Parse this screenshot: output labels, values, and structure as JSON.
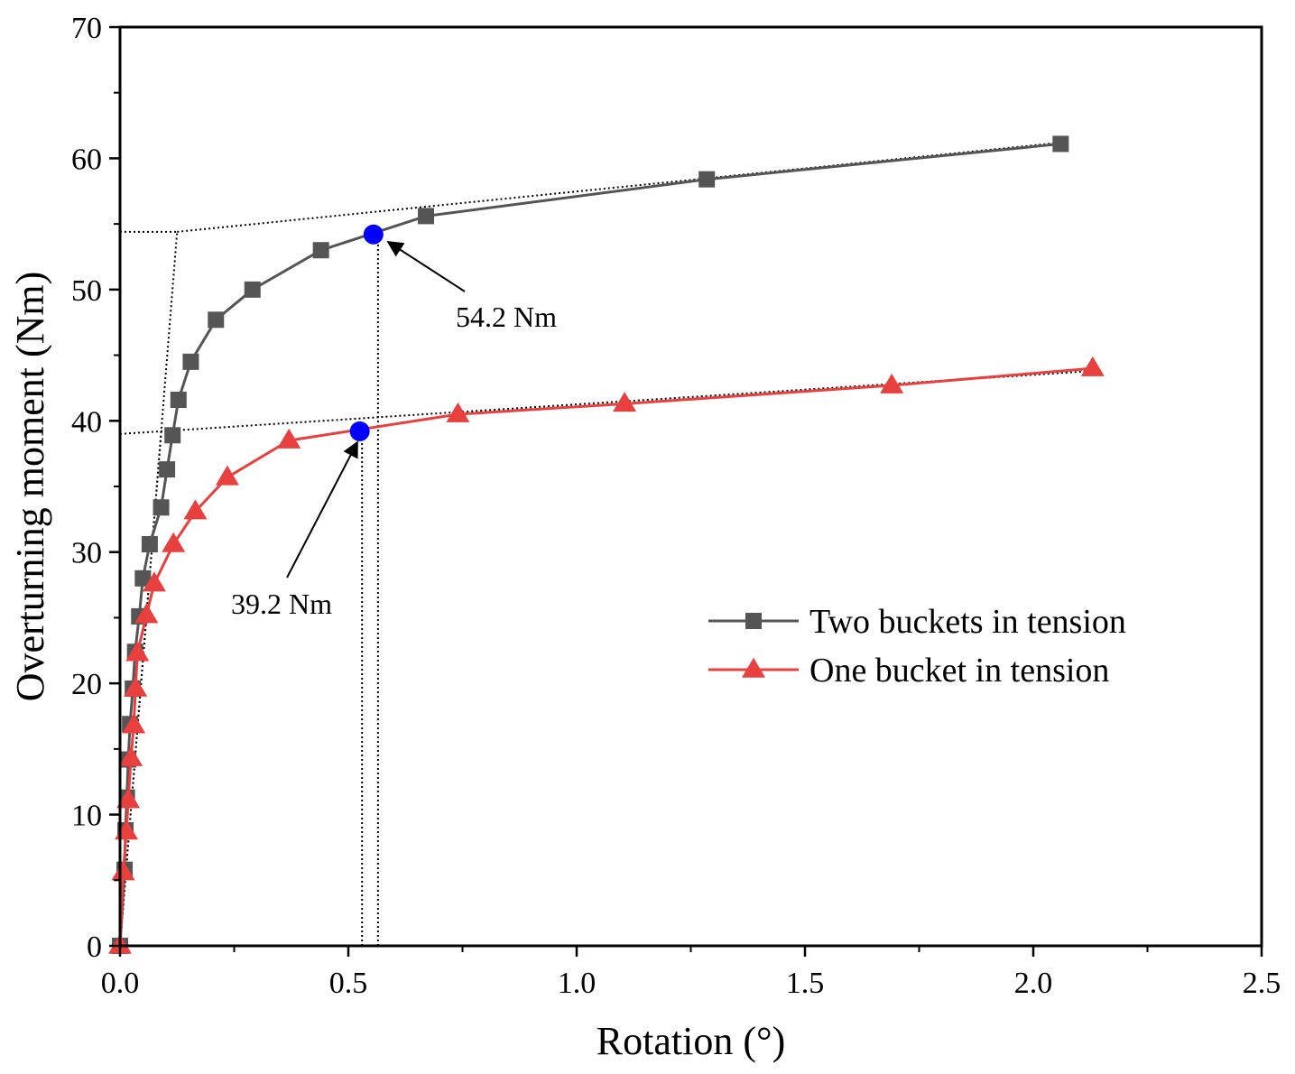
{
  "chart_data": {
    "type": "line",
    "xlabel": "Rotation (°)",
    "ylabel": "Overturning moment (Nm)",
    "xlim": [
      0,
      2.5
    ],
    "ylim": [
      0,
      70
    ],
    "x_ticks": [
      "0.0",
      "0.5",
      "1.0",
      "1.5",
      "2.0",
      "2.5"
    ],
    "y_ticks": [
      "0",
      "10",
      "20",
      "30",
      "40",
      "50",
      "60",
      "70"
    ],
    "grid": false,
    "legend_position": "right",
    "series": [
      {
        "name": "Two buckets in tension",
        "color": "#555555",
        "marker": "square",
        "points": [
          [
            0.0,
            0.0
          ],
          [
            0.01,
            5.8
          ],
          [
            0.012,
            8.8
          ],
          [
            0.015,
            11.3
          ],
          [
            0.018,
            14.2
          ],
          [
            0.022,
            16.9
          ],
          [
            0.028,
            19.6
          ],
          [
            0.033,
            22.4
          ],
          [
            0.042,
            25.1
          ],
          [
            0.05,
            28.0
          ],
          [
            0.065,
            30.6
          ],
          [
            0.09,
            33.4
          ],
          [
            0.103,
            36.3
          ],
          [
            0.115,
            38.9
          ],
          [
            0.128,
            41.6
          ],
          [
            0.155,
            44.5
          ],
          [
            0.21,
            47.7
          ],
          [
            0.29,
            50.0
          ],
          [
            0.44,
            53.0
          ],
          [
            0.67,
            55.6
          ],
          [
            1.285,
            58.4
          ],
          [
            2.06,
            61.1
          ]
        ]
      },
      {
        "name": "One bucket in tension",
        "color": "#e8403f",
        "marker": "triangle",
        "points": [
          [
            0.0,
            0.0
          ],
          [
            0.007,
            5.6
          ],
          [
            0.014,
            8.7
          ],
          [
            0.018,
            11.1
          ],
          [
            0.024,
            14.3
          ],
          [
            0.03,
            16.8
          ],
          [
            0.034,
            19.6
          ],
          [
            0.038,
            22.3
          ],
          [
            0.058,
            25.2
          ],
          [
            0.075,
            27.6
          ],
          [
            0.117,
            30.6
          ],
          [
            0.165,
            33.1
          ],
          [
            0.235,
            35.7
          ],
          [
            0.37,
            38.5
          ],
          [
            0.74,
            40.5
          ],
          [
            1.105,
            41.3
          ],
          [
            1.69,
            42.7
          ],
          [
            2.13,
            44.0
          ]
        ]
      }
    ],
    "yield_points": [
      {
        "x": 0.555,
        "y": 54.2,
        "label": "54.2 Nm",
        "color": "#0000ff"
      },
      {
        "x": 0.525,
        "y": 39.2,
        "label": "39.2 Nm",
        "color": "#0000ff"
      }
    ],
    "construction_lines": {
      "two_buckets": {
        "initial_tangent": [
          [
            0.0,
            0.0
          ],
          [
            0.125,
            54.4
          ]
        ],
        "final_tangent": [
          [
            0.125,
            54.4
          ],
          [
            2.06,
            61.2
          ]
        ],
        "horizontal": [
          [
            0.0,
            54.4
          ],
          [
            0.125,
            54.4
          ]
        ],
        "vertical_x": 0.565
      },
      "one_bucket": {
        "initial_tangent": [
          [
            0.0,
            0.0
          ],
          [
            0.09,
            39.0
          ]
        ],
        "final_tangent": [
          [
            0.0,
            39.0
          ],
          [
            2.13,
            43.8
          ]
        ],
        "vertical_x": 0.53
      }
    }
  }
}
